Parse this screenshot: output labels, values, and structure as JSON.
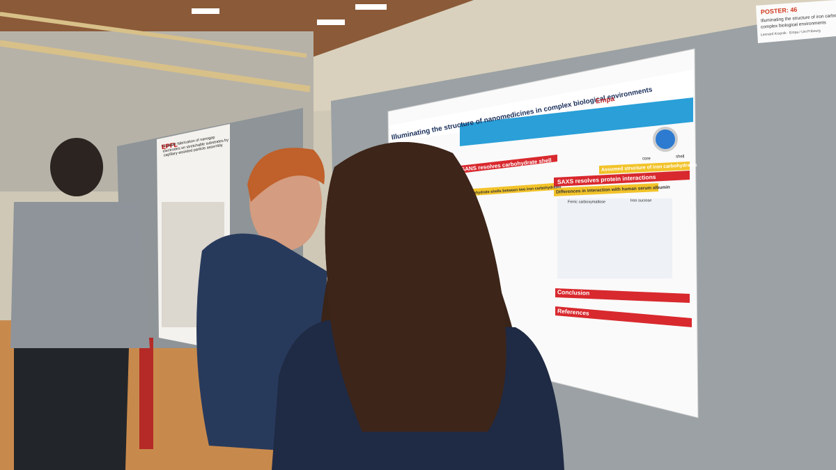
{
  "name_card": {
    "poster_number": "POSTER: 46",
    "title": "Illuminating the structure of iron carbohydr",
    "subtitle": "complex biological environments",
    "author": "Leonard Krupnik · Empa / Uni Fribourg"
  },
  "main_poster": {
    "title": "Illuminating the structure of nanomedicines in complex biological environments",
    "logo": "Empa",
    "sections": [
      "SANS resolves carbohydrate shell",
      "SAXS resolves protein interactions",
      "Assumed structure of iron carbohydrates",
      "Differences in interaction with human serum albumin",
      "Carbohydrate shells between two iron carbohydrates",
      "Conclusion",
      "References"
    ],
    "labels": [
      "core",
      "shell",
      "Ferric carboxymaltose",
      "Iron sucrose"
    ]
  },
  "left_poster": {
    "logo": "EPFL",
    "title": "Scalable fabrication of nanogap electrodes on stretchable substrates by capillary-assisted particle assembly"
  }
}
